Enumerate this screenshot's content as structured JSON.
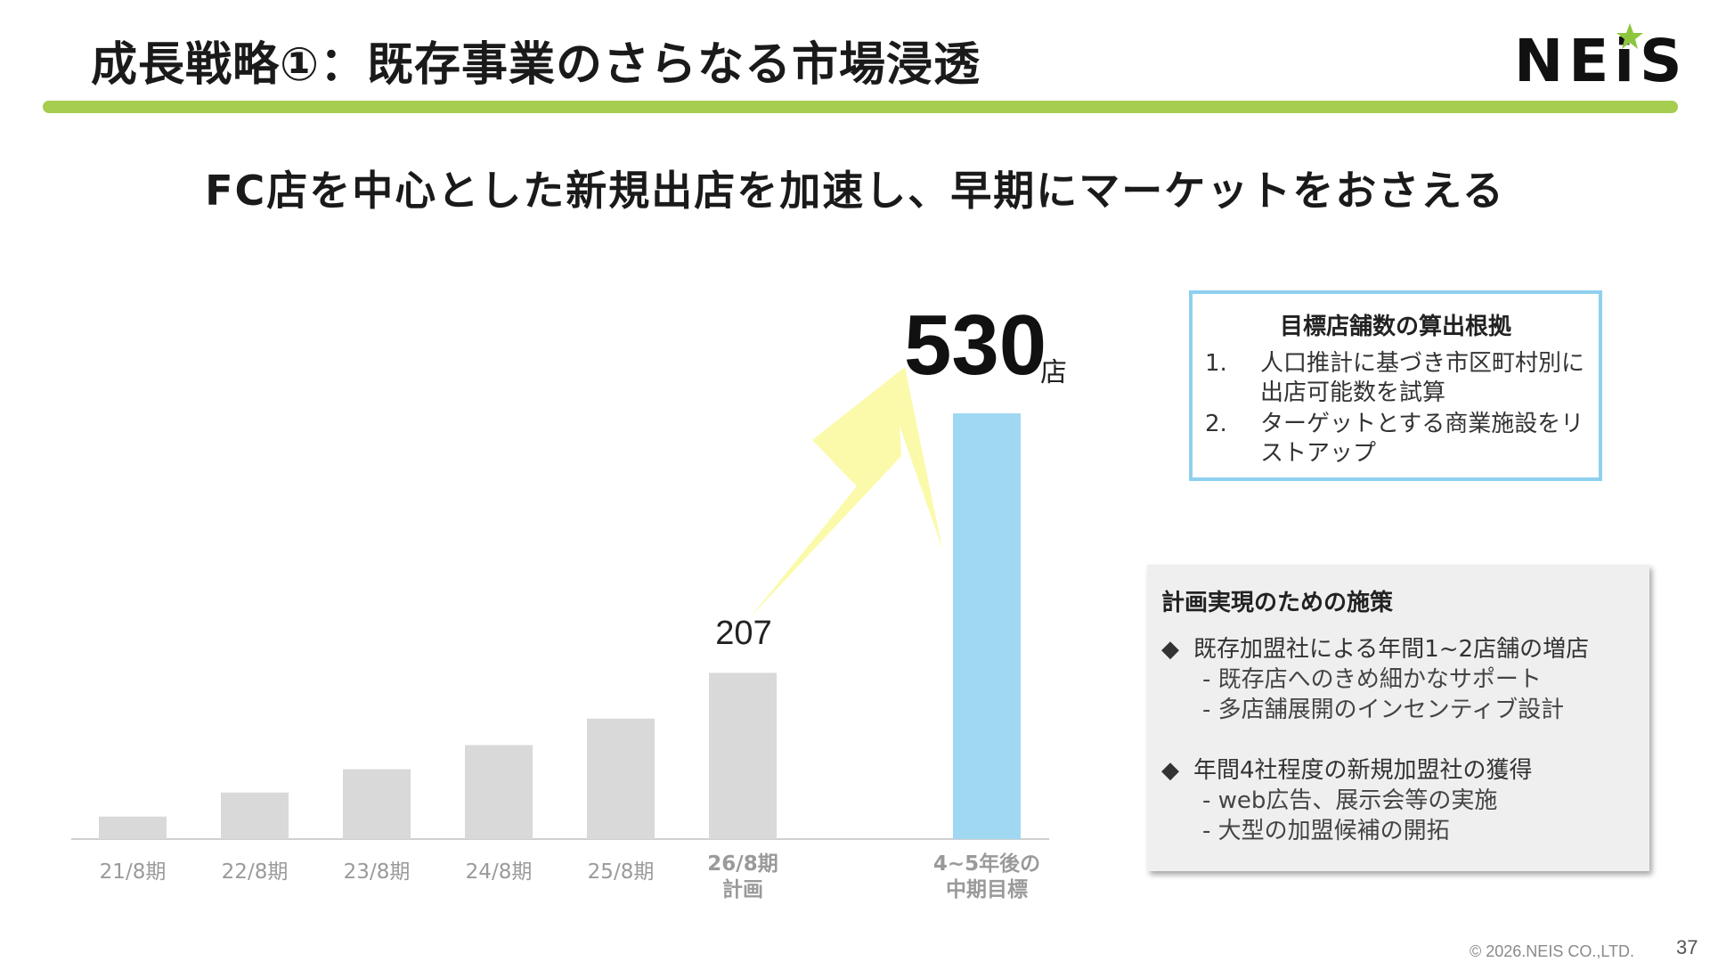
{
  "header": {
    "title": "成長戦略①：既存事業のさらなる市場浸透",
    "logo_text": "NEiS",
    "accent_color": "#a6cc50",
    "logo_star_color": "#8cc63f"
  },
  "subtitle": "FC店を中心とした新規出店を加速し、早期にマーケットをおさえる",
  "chart_data": {
    "type": "bar",
    "categories": [
      "21/8期",
      "22/8期",
      "23/8期",
      "24/8期",
      "25/8期",
      "26/8期\n計画",
      "4~5年後の\n中期目標"
    ],
    "values": [
      28,
      58,
      87,
      117,
      150,
      207,
      530
    ],
    "labels": [
      "",
      "",
      "",
      "",
      "",
      "207",
      "530"
    ],
    "unit": "店",
    "colors": [
      "#d9d9d9",
      "#d9d9d9",
      "#d9d9d9",
      "#d9d9d9",
      "#d9d9d9",
      "#d9d9d9",
      "#a0d8f2"
    ],
    "arrow_color": "#fbfaaa",
    "ylim": [
      0,
      560
    ],
    "title": "",
    "xlabel": "",
    "ylabel": ""
  },
  "callout": {
    "big_value": "530",
    "big_unit": "店",
    "small_value": "207"
  },
  "basis_box": {
    "title": "目標店舗数の算出根拠",
    "border_color": "#8fd0f0",
    "items": [
      {
        "num": "1.",
        "text": "人口推計に基づき市区町村別に出店可能数を試算"
      },
      {
        "num": "2.",
        "text": "ターゲットとする商業施設をリストアップ"
      }
    ]
  },
  "measures_box": {
    "title": "計画実現のための施策",
    "groups": [
      {
        "bullet": "◆",
        "head": "既存加盟社による年間1~2店舗の増店",
        "subs": [
          "- 既存店へのきめ細かなサポート",
          "- 多店舗展開のインセンティブ設計"
        ]
      },
      {
        "bullet": "◆",
        "head": "年間4社程度の新規加盟社の獲得",
        "subs": [
          "- web広告、展示会等の実施",
          "- 大型の加盟候補の開拓"
        ]
      }
    ]
  },
  "footer": {
    "copyright": "© 2026.NEIS CO.,LTD.",
    "page": "37"
  }
}
